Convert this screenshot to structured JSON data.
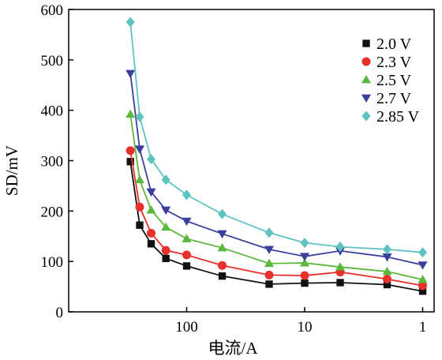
{
  "chart_data": {
    "type": "line",
    "title": "",
    "xlabel": "电流/A",
    "ylabel": "SD/mV",
    "xscale": "log-reversed",
    "xticks": [
      {
        "value": 100,
        "label": "100"
      },
      {
        "value": 10,
        "label": "10"
      },
      {
        "value": 1,
        "label": "1"
      }
    ],
    "xlim": [
      1000,
      0.8
    ],
    "ylim": [
      0,
      600
    ],
    "yticks": [
      {
        "value": 0,
        "label": "0"
      },
      {
        "value": 100,
        "label": "100"
      },
      {
        "value": 200,
        "label": "200"
      },
      {
        "value": 300,
        "label": "300"
      },
      {
        "value": 400,
        "label": "400"
      },
      {
        "value": 500,
        "label": "500"
      },
      {
        "value": 600,
        "label": "600"
      }
    ],
    "grid": false,
    "legend_position": "top-right",
    "x": [
      300,
      250,
      200,
      150,
      100,
      50,
      20,
      10,
      5,
      2,
      1
    ],
    "series": [
      {
        "name": "2.0 V",
        "color": "#111111",
        "marker": "square",
        "values": [
          298,
          172,
          135,
          106,
          91,
          71,
          55,
          57,
          58,
          54,
          41
        ]
      },
      {
        "name": "2.3 V",
        "color": "#e8302a",
        "marker": "circle",
        "values": [
          320,
          208,
          156,
          122,
          113,
          92,
          73,
          72,
          79,
          65,
          52
        ]
      },
      {
        "name": "2.5 V",
        "color": "#5cb83c",
        "marker": "triangle-up",
        "values": [
          392,
          262,
          202,
          168,
          145,
          127,
          96,
          97,
          89,
          80,
          64
        ]
      },
      {
        "name": "2.7 V",
        "color": "#3b3f9c",
        "marker": "triangle-down",
        "values": [
          473,
          323,
          238,
          202,
          180,
          155,
          124,
          110,
          121,
          109,
          93
        ]
      },
      {
        "name": "2.85 V",
        "color": "#5fc3c0",
        "marker": "diamond",
        "values": [
          575,
          387,
          303,
          262,
          232,
          194,
          157,
          137,
          129,
          124,
          118
        ]
      }
    ]
  }
}
